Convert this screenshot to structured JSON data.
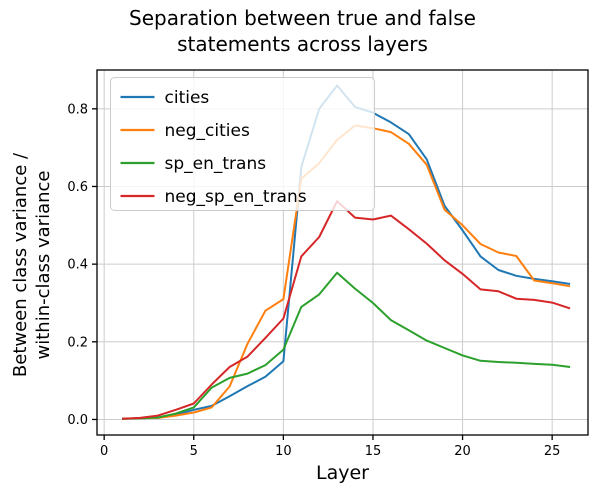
{
  "chart_data": {
    "type": "line",
    "title": "Separation between true and false statements across layers",
    "xlabel": "Layer",
    "ylabel": "Between class variance /\nwithin-class variance",
    "x": [
      1,
      2,
      3,
      4,
      5,
      6,
      7,
      8,
      9,
      10,
      11,
      12,
      13,
      14,
      15,
      16,
      17,
      18,
      19,
      20,
      21,
      22,
      23,
      24,
      25,
      26
    ],
    "series": [
      {
        "name": "cities",
        "color": "#1f77b4",
        "values": [
          0.002,
          0.003,
          0.004,
          0.012,
          0.025,
          0.035,
          0.06,
          0.086,
          0.11,
          0.15,
          0.65,
          0.8,
          0.86,
          0.805,
          0.79,
          0.765,
          0.735,
          0.67,
          0.55,
          0.487,
          0.42,
          0.385,
          0.37,
          0.362,
          0.356,
          0.349
        ]
      },
      {
        "name": "neg_cities",
        "color": "#ff7f0e",
        "values": [
          0.002,
          0.003,
          0.004,
          0.01,
          0.018,
          0.031,
          0.085,
          0.195,
          0.28,
          0.31,
          0.62,
          0.66,
          0.72,
          0.757,
          0.75,
          0.74,
          0.71,
          0.656,
          0.54,
          0.5,
          0.452,
          0.43,
          0.421,
          0.358,
          0.351,
          0.343
        ]
      },
      {
        "name": "sp_en_trans",
        "color": "#2ca02c",
        "values": [
          0.002,
          0.003,
          0.005,
          0.015,
          0.031,
          0.082,
          0.107,
          0.118,
          0.14,
          0.18,
          0.29,
          0.322,
          0.378,
          0.337,
          0.3,
          0.256,
          0.23,
          0.203,
          0.184,
          0.165,
          0.151,
          0.148,
          0.146,
          0.143,
          0.141,
          0.135
        ]
      },
      {
        "name": "neg_sp_en_trans",
        "color": "#d62728",
        "values": [
          0.002,
          0.004,
          0.01,
          0.025,
          0.041,
          0.09,
          0.135,
          0.162,
          0.21,
          0.26,
          0.42,
          0.47,
          0.562,
          0.52,
          0.515,
          0.525,
          0.49,
          0.453,
          0.41,
          0.375,
          0.335,
          0.33,
          0.311,
          0.308,
          0.301,
          0.286
        ]
      }
    ],
    "xticks": [
      "0",
      "5",
      "10",
      "15",
      "20",
      "25"
    ],
    "xtick_values": [
      0,
      5,
      10,
      15,
      20,
      25
    ],
    "yticks": [
      "0.0",
      "0.2",
      "0.4",
      "0.6",
      "0.8"
    ],
    "ytick_values": [
      0.0,
      0.2,
      0.4,
      0.6,
      0.8
    ],
    "xlim": [
      -0.4,
      27
    ],
    "ylim": [
      -0.04,
      0.9
    ],
    "grid": true,
    "grid_color": "#cccccc",
    "legend_position": "upper left",
    "spine_color": "#000000",
    "background_color": "#ffffff"
  }
}
